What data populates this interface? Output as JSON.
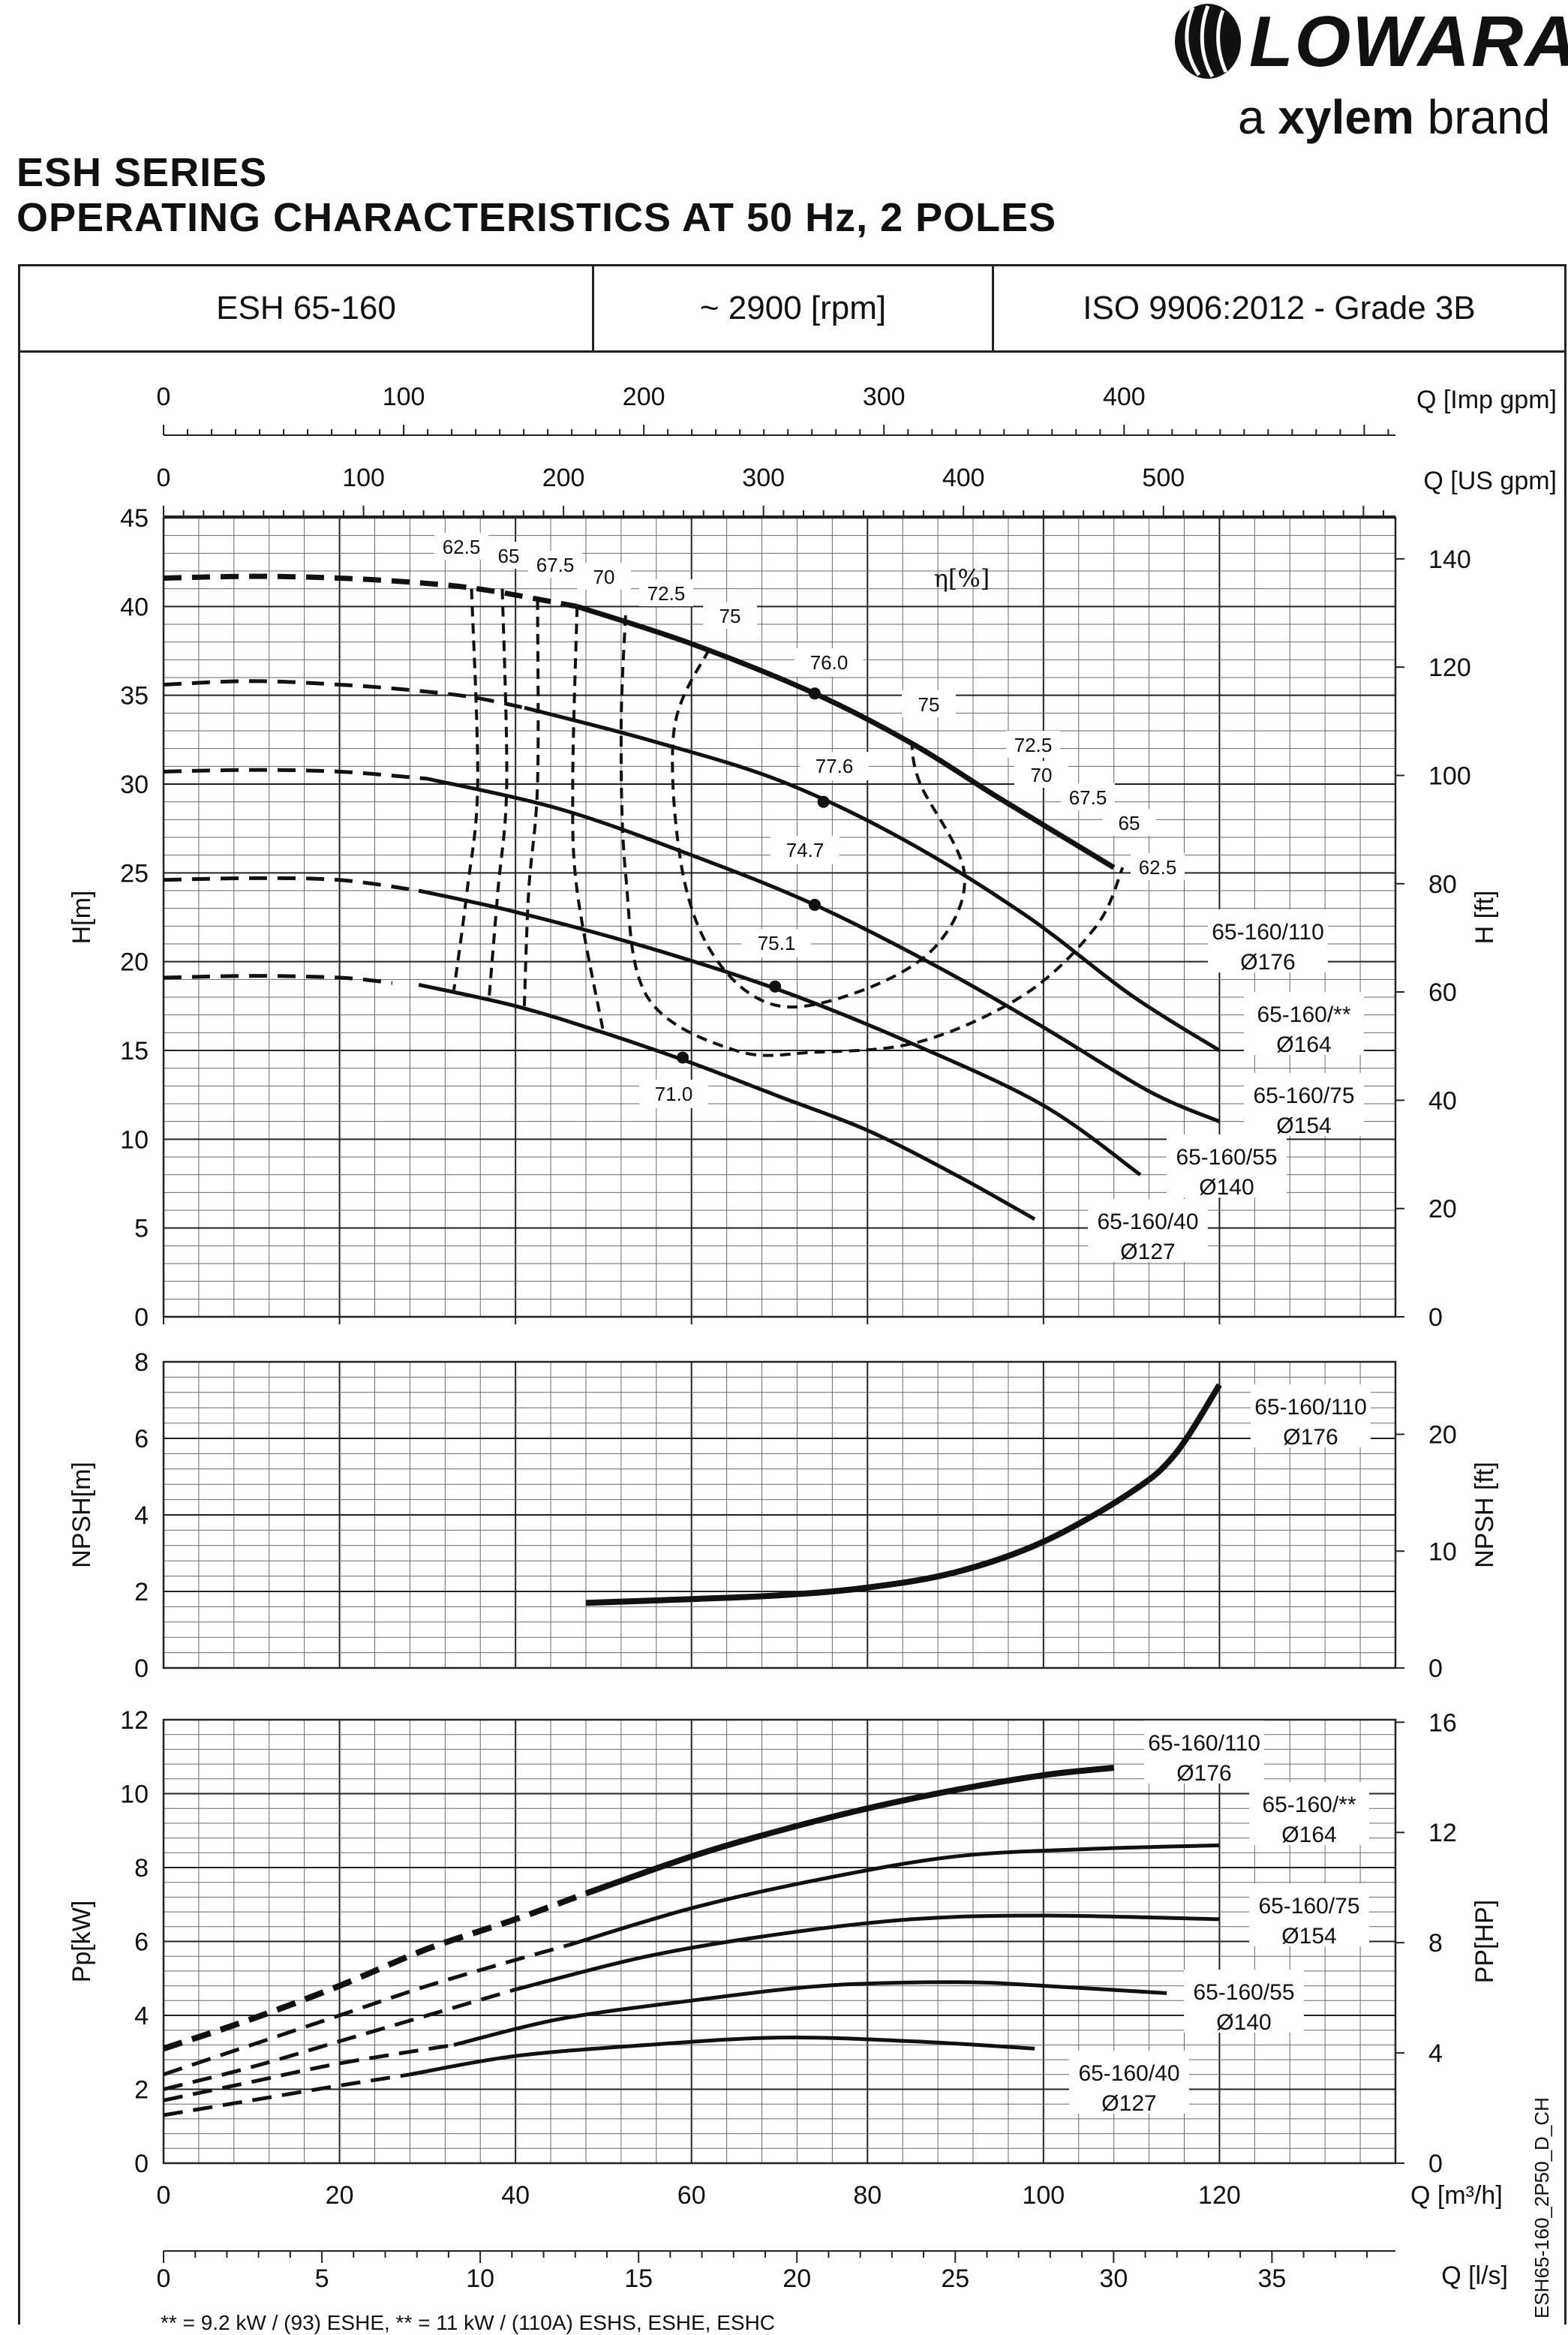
{
  "header": {
    "brand": "LOWARA",
    "brand_tagline_prefix": "a",
    "brand_tagline_bold": "xylem",
    "brand_tagline_suffix": "brand",
    "series_title": "ESH SERIES",
    "subtitle": "OPERATING CHARACTERISTICS AT 50 Hz, 2 POLES",
    "model": "ESH 65-160",
    "speed": "~ 2900 [rpm]",
    "standard": "ISO 9906:2012 - Grade 3B"
  },
  "side_code": "ESH65-160_2P50_D_CH",
  "footnote": "** = 9.2 kW / (93) ESHE, ** = 11 kW / (110A) ESHS, ESHE, ESHC",
  "colors": {
    "curve": "#111111",
    "grid_major": "#222222",
    "grid_minor": "#6a6a6a"
  },
  "chart_data": [
    {
      "type": "line",
      "id": "head",
      "xlabel": "Q [m³/h]",
      "ylabel": "H[m]",
      "y2label": "H [ft]",
      "xlim": [
        0,
        140
      ],
      "ylim": [
        0,
        45
      ],
      "y2lim": [
        0,
        147.6
      ],
      "x_ticks": [
        0,
        20,
        40,
        60,
        80,
        100,
        120
      ],
      "y_ticks": [
        0,
        5,
        10,
        15,
        20,
        25,
        30,
        35,
        40,
        45
      ],
      "y2_ticks": [
        0,
        20,
        40,
        60,
        80,
        100,
        120,
        140
      ],
      "top_axes": [
        {
          "label": "Q [Imp gpm]",
          "ticks": [
            0,
            100,
            200,
            300,
            400
          ],
          "max": 513
        },
        {
          "label": "Q [US gpm]",
          "ticks": [
            0,
            100,
            200,
            300,
            400,
            500
          ],
          "max": 616
        }
      ],
      "efficiency_label": "η[%]",
      "series": [
        {
          "name": "65-160/110",
          "sublabel": "Ø176",
          "style": "bold",
          "dashed": [
            [
              0,
              41.6
            ],
            [
              10,
              41.7
            ],
            [
              20,
              41.6
            ],
            [
              30,
              41.3
            ],
            [
              37,
              40.9
            ],
            [
              47,
              40.0
            ]
          ],
          "values": [
            [
              47,
              40.0
            ],
            [
              60,
              37.9
            ],
            [
              74,
              35.1
            ],
            [
              85,
              32.3
            ],
            [
              95,
              29.2
            ],
            [
              108,
              25.3
            ]
          ]
        },
        {
          "name": "65-160/**",
          "sublabel": "Ø164",
          "dashed": [
            [
              0,
              35.6
            ],
            [
              10,
              35.8
            ],
            [
              20,
              35.6
            ],
            [
              28,
              35.3
            ],
            [
              35,
              34.9
            ],
            [
              41,
              34.3
            ]
          ],
          "values": [
            [
              41,
              34.3
            ],
            [
              55,
              32.5
            ],
            [
              70,
              30.2
            ],
            [
              84,
              26.9
            ],
            [
              98,
              22.6
            ],
            [
              110,
              18.1
            ],
            [
              120,
              15.0
            ]
          ]
        },
        {
          "name": "65-160/75",
          "sublabel": "Ø154",
          "dashed": [
            [
              0,
              30.7
            ],
            [
              10,
              30.8
            ],
            [
              20,
              30.7
            ],
            [
              30,
              30.3
            ]
          ],
          "values": [
            [
              30,
              30.3
            ],
            [
              45,
              28.6
            ],
            [
              60,
              26.0
            ],
            [
              74,
              23.2
            ],
            [
              88,
              19.7
            ],
            [
              100,
              16.3
            ],
            [
              112,
              12.7
            ],
            [
              120,
              11.0
            ]
          ]
        },
        {
          "name": "65-160/55",
          "sublabel": "Ø140",
          "dashed": [
            [
              0,
              24.6
            ],
            [
              10,
              24.7
            ],
            [
              20,
              24.6
            ],
            [
              29,
              24.0
            ]
          ],
          "values": [
            [
              29,
              24.0
            ],
            [
              40,
              22.8
            ],
            [
              55,
              20.8
            ],
            [
              70,
              18.4
            ],
            [
              85,
              15.4
            ],
            [
              100,
              11.9
            ],
            [
              111,
              8.0
            ]
          ]
        },
        {
          "name": "65-160/40",
          "sublabel": "Ø127",
          "dashed": [
            [
              0,
              19.1
            ],
            [
              10,
              19.2
            ],
            [
              20,
              19.1
            ],
            [
              26,
              18.8
            ]
          ],
          "values": [
            [
              29,
              18.7
            ],
            [
              40,
              17.5
            ],
            [
              50,
              16.0
            ],
            [
              60,
              14.3
            ],
            [
              70,
              12.4
            ],
            [
              80,
              10.5
            ],
            [
              90,
              8.0
            ],
            [
              99,
              5.5
            ]
          ]
        }
      ],
      "best_efficiency_points": [
        {
          "label": "76.0",
          "x": 74,
          "y": 35.1
        },
        {
          "label": "77.6",
          "x": 75,
          "y": 29.0
        },
        {
          "label": "74.7",
          "x": 74,
          "y": 23.2
        },
        {
          "label": "75.1",
          "x": 69.5,
          "y": 18.6
        },
        {
          "label": "71.0",
          "x": 59,
          "y": 14.6
        }
      ],
      "efficiency_contours": [
        {
          "label": "62.5",
          "values": [
            [
              35,
              41.0
            ],
            [
              35.7,
              30
            ],
            [
              34.5,
              24
            ],
            [
              33,
              18.4
            ]
          ]
        },
        {
          "label": "65",
          "values": [
            [
              38.5,
              41.0
            ],
            [
              39,
              30
            ],
            [
              38,
              24
            ],
            [
              37,
              18.0
            ]
          ]
        },
        {
          "label": "67.5",
          "values": [
            [
              42.5,
              40.4
            ],
            [
              42.5,
              30
            ],
            [
              41.5,
              24
            ],
            [
              41,
              17.5
            ]
          ]
        },
        {
          "label": "70",
          "values": [
            [
              47,
              40.0
            ],
            [
              46.5,
              30
            ],
            [
              47,
              24
            ],
            [
              50,
              16.0
            ]
          ]
        },
        {
          "label": "72.5",
          "values": [
            [
              52.5,
              39.5
            ],
            [
              52,
              33
            ],
            [
              52.5,
              25
            ],
            [
              55,
              18
            ],
            [
              65,
              15
            ],
            [
              74,
              14.9
            ],
            [
              86,
              15.5
            ],
            [
              98,
              18.2
            ],
            [
              106,
              22
            ],
            [
              109,
              25.3
            ]
          ]
        },
        {
          "label": "75",
          "values": [
            [
              62,
              37.6
            ],
            [
              58,
              33
            ],
            [
              59,
              25
            ],
            [
              63,
              20
            ],
            [
              70,
              17.5
            ],
            [
              80,
              18.5
            ],
            [
              88,
              21
            ],
            [
              91,
              25
            ],
            [
              86,
              30
            ],
            [
              85,
              32.3
            ]
          ]
        }
      ],
      "contour_end_labels": [
        "75",
        "72.5",
        "70",
        "67.5",
        "65",
        "62.5"
      ]
    },
    {
      "type": "line",
      "id": "npsh",
      "xlabel": "",
      "ylabel": "NPSH[m]",
      "y2label": "NPSH [ft]",
      "xlim": [
        0,
        140
      ],
      "ylim": [
        0,
        8
      ],
      "y2_ticks": [
        0,
        10,
        20
      ],
      "y_ticks": [
        0,
        2,
        4,
        6,
        8
      ],
      "series": [
        {
          "name": "65-160/110",
          "sublabel": "Ø176",
          "values": [
            [
              48,
              1.7
            ],
            [
              60,
              1.8
            ],
            [
              70,
              1.9
            ],
            [
              80,
              2.1
            ],
            [
              90,
              2.5
            ],
            [
              100,
              3.3
            ],
            [
              110,
              4.6
            ],
            [
              115,
              5.6
            ],
            [
              120,
              7.4
            ]
          ]
        }
      ]
    },
    {
      "type": "line",
      "id": "power",
      "xlabel": "Q [m³/h]",
      "ylabel": "Pp[kW]",
      "y2label": "PP[HP]",
      "xlim": [
        0,
        140
      ],
      "ylim": [
        0,
        12
      ],
      "y_ticks": [
        0,
        2,
        4,
        6,
        8,
        10,
        12
      ],
      "y2_ticks": [
        0,
        4,
        8,
        12,
        16
      ],
      "x_ticks": [
        0,
        20,
        40,
        60,
        80,
        100,
        120
      ],
      "bottom_axis": {
        "label": "Q [l/s]",
        "ticks": [
          0,
          5,
          10,
          15,
          20,
          25,
          30,
          35
        ],
        "max": 38.9
      },
      "series": [
        {
          "name": "65-160/110",
          "sublabel": "Ø176",
          "style": "bold",
          "dashed": [
            [
              0,
              3.1
            ],
            [
              10,
              3.9
            ],
            [
              20,
              4.8
            ],
            [
              30,
              5.8
            ],
            [
              40,
              6.6
            ],
            [
              48,
              7.3
            ]
          ],
          "values": [
            [
              48,
              7.3
            ],
            [
              60,
              8.3
            ],
            [
              70,
              9.0
            ],
            [
              80,
              9.6
            ],
            [
              90,
              10.1
            ],
            [
              100,
              10.5
            ],
            [
              108,
              10.7
            ]
          ]
        },
        {
          "name": "65-160/**",
          "sublabel": "Ø164",
          "dashed": [
            [
              0,
              2.4
            ],
            [
              10,
              3.2
            ],
            [
              20,
              4.0
            ],
            [
              30,
              4.8
            ],
            [
              40,
              5.5
            ],
            [
              46,
              5.9
            ]
          ],
          "values": [
            [
              46,
              5.9
            ],
            [
              60,
              6.9
            ],
            [
              75,
              7.7
            ],
            [
              90,
              8.3
            ],
            [
              105,
              8.5
            ],
            [
              120,
              8.6
            ]
          ]
        },
        {
          "name": "65-160/75",
          "sublabel": "Ø154",
          "dashed": [
            [
              0,
              2.0
            ],
            [
              10,
              2.6
            ],
            [
              20,
              3.3
            ],
            [
              30,
              4.0
            ],
            [
              40,
              4.7
            ]
          ],
          "values": [
            [
              40,
              4.7
            ],
            [
              55,
              5.6
            ],
            [
              70,
              6.2
            ],
            [
              85,
              6.6
            ],
            [
              100,
              6.7
            ],
            [
              120,
              6.6
            ]
          ]
        },
        {
          "name": "65-160/55",
          "sublabel": "Ø140",
          "dashed": [
            [
              0,
              1.7
            ],
            [
              10,
              2.2
            ],
            [
              20,
              2.7
            ],
            [
              33,
              3.2
            ]
          ],
          "values": [
            [
              33,
              3.2
            ],
            [
              45,
              3.9
            ],
            [
              60,
              4.4
            ],
            [
              75,
              4.8
            ],
            [
              90,
              4.9
            ],
            [
              100,
              4.8
            ],
            [
              114,
              4.6
            ]
          ]
        },
        {
          "name": "65-160/40",
          "sublabel": "Ø127",
          "dashed": [
            [
              0,
              1.3
            ],
            [
              10,
              1.7
            ],
            [
              20,
              2.1
            ],
            [
              28,
              2.4
            ]
          ],
          "values": [
            [
              28,
              2.4
            ],
            [
              40,
              2.9
            ],
            [
              55,
              3.2
            ],
            [
              70,
              3.4
            ],
            [
              85,
              3.3
            ],
            [
              99,
              3.1
            ]
          ]
        }
      ]
    }
  ]
}
